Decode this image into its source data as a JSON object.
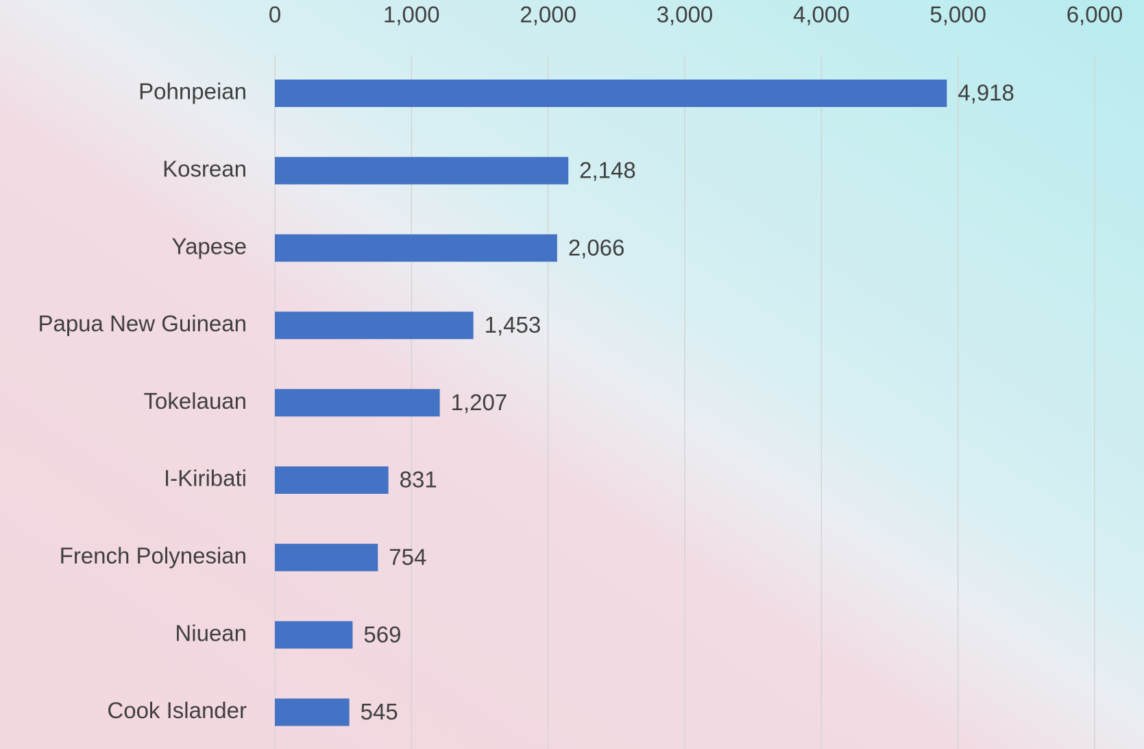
{
  "chart_data": {
    "type": "hbar",
    "categories": [
      "Pohnpeian",
      "Kosrean",
      "Yapese",
      "Papua New Guinean",
      "Tokelauan",
      "I-Kiribati",
      "French Polynesian",
      "Niuean",
      "Cook Islander"
    ],
    "values": [
      4918,
      2148,
      2066,
      1453,
      1207,
      831,
      754,
      569,
      545
    ],
    "value_labels": [
      "4,918",
      "2,148",
      "2,066",
      "1,453",
      "1,207",
      "831",
      "754",
      "569",
      "545"
    ],
    "color": "#4472c4",
    "xlim": [
      0,
      6000
    ],
    "xticks": [
      0,
      {
        "value": 1000,
        "label": "1,000"
      },
      {
        "value": 2000,
        "label": "2,000"
      },
      {
        "value": 3000,
        "label": "3,000"
      },
      {
        "value": 4000,
        "label": "4,000"
      },
      {
        "value": 5000,
        "label": "5,000"
      },
      {
        "value": 6000,
        "label": "6,000"
      }
    ],
    "grid": true
  }
}
